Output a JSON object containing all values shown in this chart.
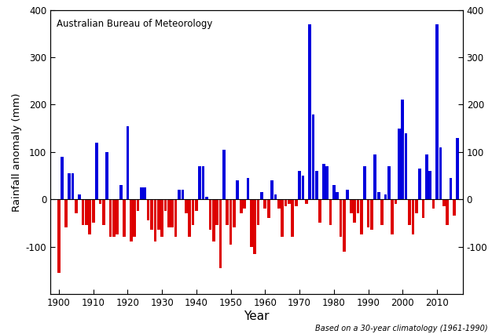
{
  "years": [
    1900,
    1901,
    1902,
    1903,
    1904,
    1905,
    1906,
    1907,
    1908,
    1909,
    1910,
    1911,
    1912,
    1913,
    1914,
    1915,
    1916,
    1917,
    1918,
    1919,
    1920,
    1921,
    1922,
    1923,
    1924,
    1925,
    1926,
    1927,
    1928,
    1929,
    1930,
    1931,
    1932,
    1933,
    1934,
    1935,
    1936,
    1937,
    1938,
    1939,
    1940,
    1941,
    1942,
    1943,
    1944,
    1945,
    1946,
    1947,
    1948,
    1949,
    1950,
    1951,
    1952,
    1953,
    1954,
    1955,
    1956,
    1957,
    1958,
    1959,
    1960,
    1961,
    1962,
    1963,
    1964,
    1965,
    1966,
    1967,
    1968,
    1969,
    1970,
    1971,
    1972,
    1973,
    1974,
    1975,
    1976,
    1977,
    1978,
    1979,
    1980,
    1981,
    1982,
    1983,
    1984,
    1985,
    1986,
    1987,
    1988,
    1989,
    1990,
    1991,
    1992,
    1993,
    1994,
    1995,
    1996,
    1997,
    1998,
    1999,
    2000,
    2001,
    2002,
    2003,
    2004,
    2005,
    2006,
    2007,
    2008,
    2009,
    2010,
    2011,
    2012,
    2013,
    2014,
    2015,
    2016
  ],
  "values": [
    -155,
    90,
    -60,
    55,
    55,
    -30,
    10,
    -55,
    -55,
    -75,
    -50,
    120,
    -10,
    -55,
    100,
    -80,
    -80,
    -75,
    30,
    -80,
    155,
    -90,
    -80,
    -25,
    25,
    25,
    -45,
    -65,
    -90,
    -65,
    -80,
    -25,
    -60,
    -60,
    -80,
    20,
    20,
    -30,
    -80,
    -55,
    -25,
    70,
    70,
    5,
    -65,
    -90,
    -55,
    -145,
    105,
    -55,
    -95,
    -60,
    40,
    -30,
    -20,
    45,
    -100,
    -115,
    -55,
    15,
    -20,
    -40,
    40,
    10,
    -20,
    -80,
    -15,
    -10,
    -80,
    -15,
    60,
    50,
    -10,
    370,
    180,
    60,
    -50,
    75,
    70,
    -55,
    30,
    15,
    -80,
    -110,
    20,
    -30,
    -50,
    -30,
    -75,
    70,
    -60,
    -65,
    95,
    15,
    -55,
    10,
    70,
    -75,
    -10,
    150,
    210,
    140,
    -55,
    -75,
    -30,
    65,
    -40,
    95,
    60,
    -20,
    370,
    110,
    -15,
    -55,
    45,
    -35,
    130
  ],
  "title": "Australian Bureau of Meteorology",
  "xlabel": "Year",
  "ylabel": "Rainfall anomaly (mm)",
  "footnote": "Based on a 30-year climatology (1961-1990)",
  "ylim": [
    -200,
    400
  ],
  "yticks": [
    -100,
    0,
    100,
    200,
    300,
    400
  ],
  "xticks": [
    1900,
    1910,
    1920,
    1930,
    1940,
    1950,
    1960,
    1970,
    1980,
    1990,
    2000,
    2010
  ],
  "xlim_left": 1897.5,
  "xlim_right": 2017.5,
  "positive_color": "#0000dd",
  "negative_color": "#dd0000",
  "bar_width": 0.85,
  "bg_color": "#ffffff"
}
